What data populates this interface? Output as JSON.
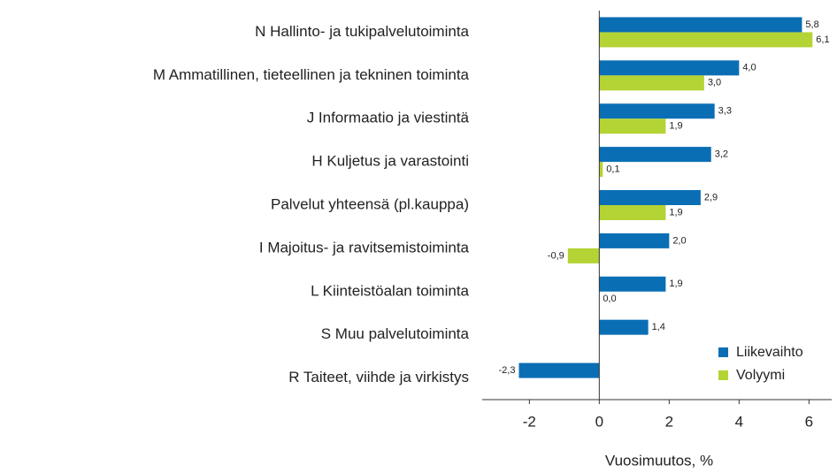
{
  "chart_data": {
    "type": "barh",
    "categories": [
      "N Hallinto- ja tukipalvelutoiminta",
      "M Ammatillinen, tieteellinen ja tekninen toiminta",
      "J Informaatio ja viestintä",
      "H Kuljetus ja varastointi",
      "Palvelut yhteensä (pl.kauppa)",
      "I Majoitus- ja ravitsemistoiminta",
      "L Kiinteistöalan toiminta",
      "S Muu palvelutoiminta",
      "R Taiteet, viihde ja virkistys"
    ],
    "series": [
      {
        "name": "Liikevaihto",
        "color": "#0a6eb4",
        "values": [
          5.8,
          4.0,
          3.3,
          3.2,
          2.9,
          2.0,
          1.9,
          1.4,
          -2.3
        ],
        "value_labels": [
          "5,8",
          "4,0",
          "3,3",
          "3,2",
          "2,9",
          "2,0",
          "1,9",
          "1,4",
          "-2,3"
        ]
      },
      {
        "name": "Volyymi",
        "color": "#b4d334",
        "values": [
          6.1,
          3.0,
          1.9,
          0.1,
          1.9,
          -0.9,
          0.0,
          null,
          null
        ],
        "value_labels": [
          "6,1",
          "3,0",
          "1,9",
          "0,1",
          "1,9",
          "-0,9",
          "0,0",
          null,
          null
        ]
      }
    ],
    "x_label": "Vuosimuutos, %",
    "xlim": [
      -3.35,
      6.65
    ],
    "xticks": [
      -2,
      0,
      2,
      4,
      6
    ],
    "legend": "lower-right"
  }
}
